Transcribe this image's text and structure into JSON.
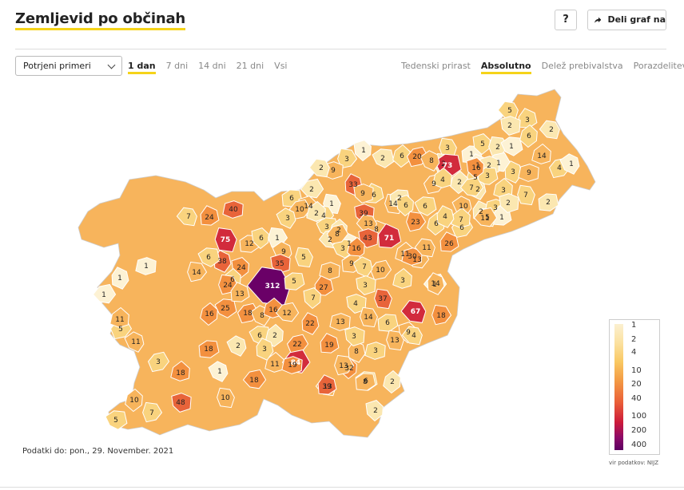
{
  "header": {
    "title": "Zemljevid po občinah",
    "help_label": "?",
    "share_label": "Deli graf na"
  },
  "controls": {
    "select_value": "Potrjeni primeri",
    "time_tabs": [
      {
        "label": "1 dan",
        "active": true
      },
      {
        "label": "7 dni",
        "active": false
      },
      {
        "label": "14 dni",
        "active": false
      },
      {
        "label": "21 dni",
        "active": false
      },
      {
        "label": "Vsi",
        "active": false
      }
    ],
    "mode_tabs": [
      {
        "label": "Tedenski prirast",
        "active": false
      },
      {
        "label": "Absolutno",
        "active": true
      },
      {
        "label": "Delež prebivalstva",
        "active": false
      },
      {
        "label": "Porazdelitev",
        "active": false
      }
    ]
  },
  "map": {
    "region_values": [
      "5",
      "3",
      "2",
      "3",
      "1",
      "5",
      "2",
      "1",
      "6",
      "4",
      "1",
      "14",
      "1",
      "3",
      "9",
      "2",
      "1",
      "2",
      "5",
      "3",
      "16",
      "2",
      "73",
      "2",
      "9",
      "2",
      "3",
      "7",
      "2",
      "3",
      "5",
      "1",
      "2",
      "7",
      "2",
      "1",
      "3",
      "2",
      "6",
      "20",
      "8",
      "4",
      "2",
      "33",
      "9",
      "2",
      "6",
      "9",
      "1",
      "6",
      "14",
      "4",
      "3",
      "2",
      "10",
      "3",
      "2",
      "2",
      "1",
      "40",
      "7",
      "24",
      "39",
      "14",
      "2",
      "6",
      "23",
      "6",
      "6",
      "6",
      "10",
      "7",
      "11",
      "4",
      "8",
      "13",
      "71",
      "43",
      "75",
      "12",
      "6",
      "1",
      "3",
      "16",
      "8",
      "9",
      "11",
      "13",
      "38",
      "30",
      "11",
      "26",
      "35",
      "5",
      "9",
      "24",
      "14",
      "6",
      "6",
      "10",
      "7",
      "3",
      "1",
      "14",
      "8",
      "312",
      "27",
      "3",
      "37",
      "5",
      "7",
      "24",
      "25",
      "16",
      "18",
      "8",
      "16",
      "12",
      "22",
      "13",
      "67",
      "13",
      "4",
      "14",
      "6",
      "9",
      "18",
      "6",
      "2",
      "22",
      "2",
      "11",
      "84",
      "8",
      "3",
      "4",
      "19",
      "3",
      "13",
      "18",
      "32",
      "13",
      "6",
      "2",
      "3",
      "1",
      "18",
      "18",
      "3",
      "19",
      "13",
      "39",
      "48",
      "10",
      "8",
      "2",
      "7",
      "5",
      "10",
      "5",
      "11",
      "11",
      "1",
      "1",
      "1"
    ],
    "legend": {
      "labels": [
        "1",
        "2",
        "4",
        "10",
        "20",
        "40",
        "100",
        "200",
        "400"
      ]
    },
    "colors": {
      "v1": "#fdf2d4",
      "v2": "#fbe7b0",
      "v4": "#f9d37e",
      "v10": "#f7b45c",
      "v20": "#f3903f",
      "v40": "#e8643a",
      "v100": "#d22b3c",
      "v200": "#a7104e",
      "v400": "#6a0067"
    }
  },
  "footer": {
    "data_date": "Podatki do: pon., 29. November. 2021",
    "source": "vir podatkov: NIJZ"
  }
}
